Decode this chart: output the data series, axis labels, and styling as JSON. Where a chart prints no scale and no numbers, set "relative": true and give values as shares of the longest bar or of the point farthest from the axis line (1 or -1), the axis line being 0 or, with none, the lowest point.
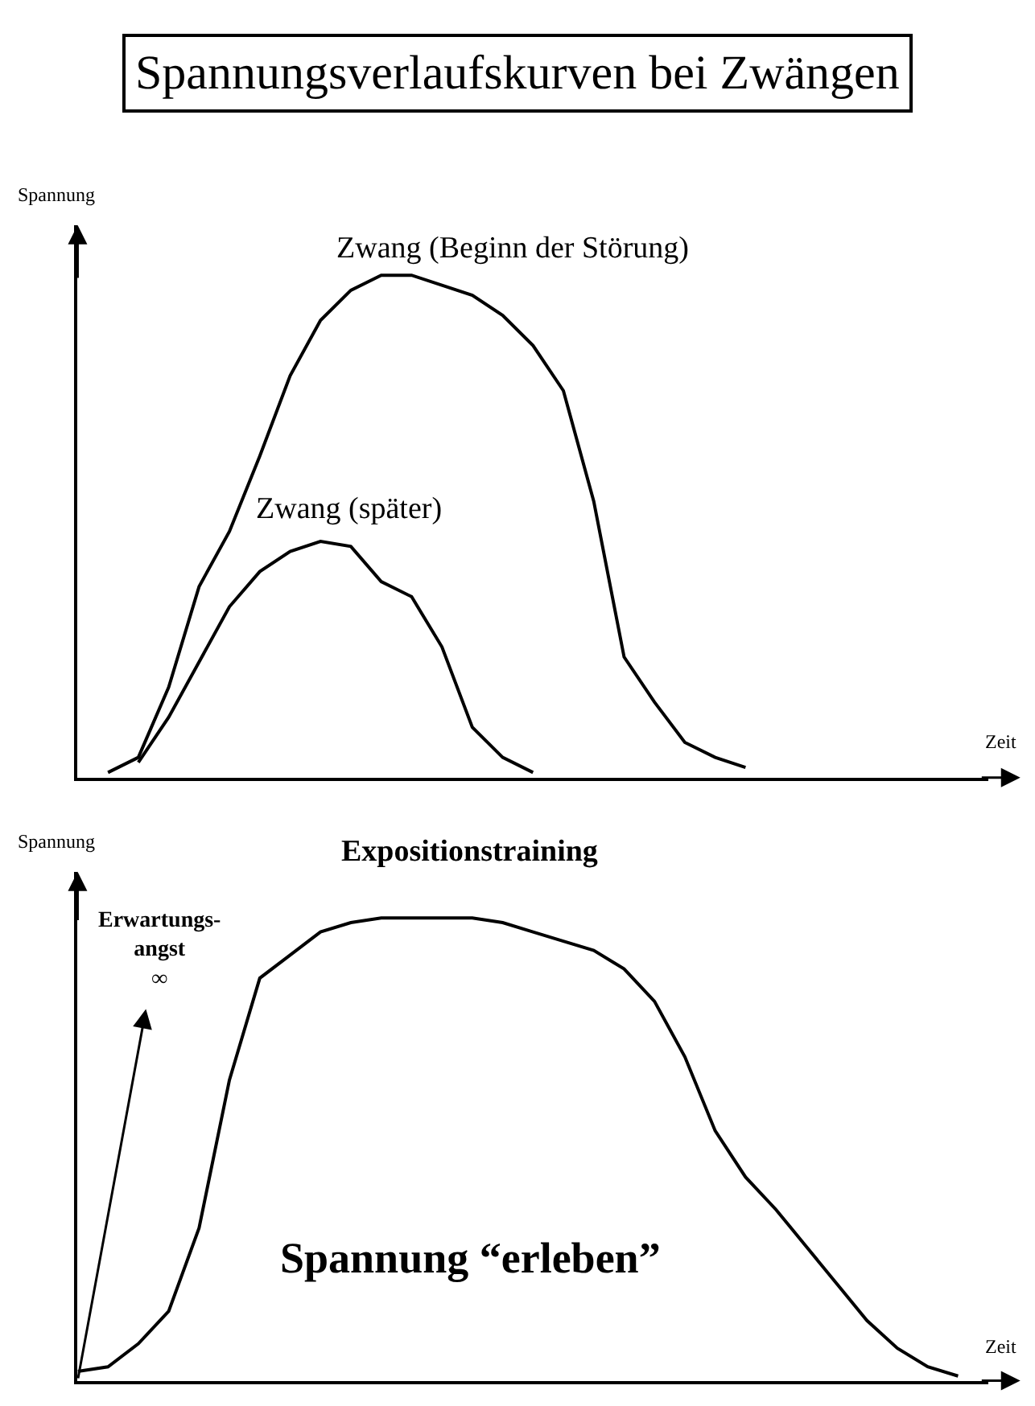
{
  "chart_data": [
    {
      "type": "line",
      "relative": true,
      "title": "Spannungsverlaufskurven bei Zwängen",
      "xlabel": "Zeit",
      "ylabel": "Spannung",
      "categories": [
        null,
        null,
        null,
        null,
        null,
        null,
        null,
        null,
        null,
        null,
        null,
        null,
        null,
        null,
        null,
        null,
        null,
        null,
        null,
        null,
        null,
        null,
        null,
        null,
        null,
        null,
        null,
        null,
        null,
        null,
        null
      ],
      "series": [
        {
          "color": "#000000",
          "values": [
            null,
            0.01,
            0.04,
            0.18,
            0.38,
            0.49,
            0.64,
            0.8,
            0.91,
            0.97,
            1.0,
            1.0,
            0.98,
            0.96,
            0.92,
            0.86,
            0.77,
            0.55,
            0.24,
            0.15,
            0.07,
            0.04,
            0.02,
            null,
            null,
            null,
            null,
            null,
            null,
            null,
            null
          ]
        },
        {
          "color": "#000000",
          "values": [
            null,
            null,
            0.03,
            0.12,
            0.23,
            0.34,
            0.41,
            0.45,
            0.47,
            0.46,
            0.39,
            0.36,
            0.26,
            0.1,
            0.04,
            0.01,
            null,
            null,
            null,
            null,
            null,
            null,
            null,
            null,
            null,
            null,
            null,
            null,
            null,
            null,
            null
          ]
        }
      ],
      "annotations": [
        "Zwang (Beginn der Störung)",
        "Zwang (später)"
      ]
    },
    {
      "type": "line",
      "relative": true,
      "title": "Expositionstraining",
      "xlabel": "Zeit",
      "ylabel": "Spannung",
      "categories": [
        null,
        null,
        null,
        null,
        null,
        null,
        null,
        null,
        null,
        null,
        null,
        null,
        null,
        null,
        null,
        null,
        null,
        null,
        null,
        null,
        null,
        null,
        null,
        null,
        null,
        null,
        null,
        null,
        null,
        null,
        null
      ],
      "series": [
        {
          "color": "#000000",
          "values": [
            0.02,
            0.03,
            0.08,
            0.15,
            0.33,
            0.65,
            0.87,
            0.92,
            0.97,
            0.99,
            1.0,
            1.0,
            1.0,
            1.0,
            0.99,
            0.97,
            0.95,
            0.93,
            0.89,
            0.82,
            0.7,
            0.54,
            0.44,
            0.37,
            0.29,
            0.21,
            0.13,
            0.07,
            0.03,
            0.01,
            null
          ]
        }
      ],
      "annotations": [
        "Erwartungs-\nangst\n∞",
        "Spannung “erleben”"
      ]
    }
  ]
}
